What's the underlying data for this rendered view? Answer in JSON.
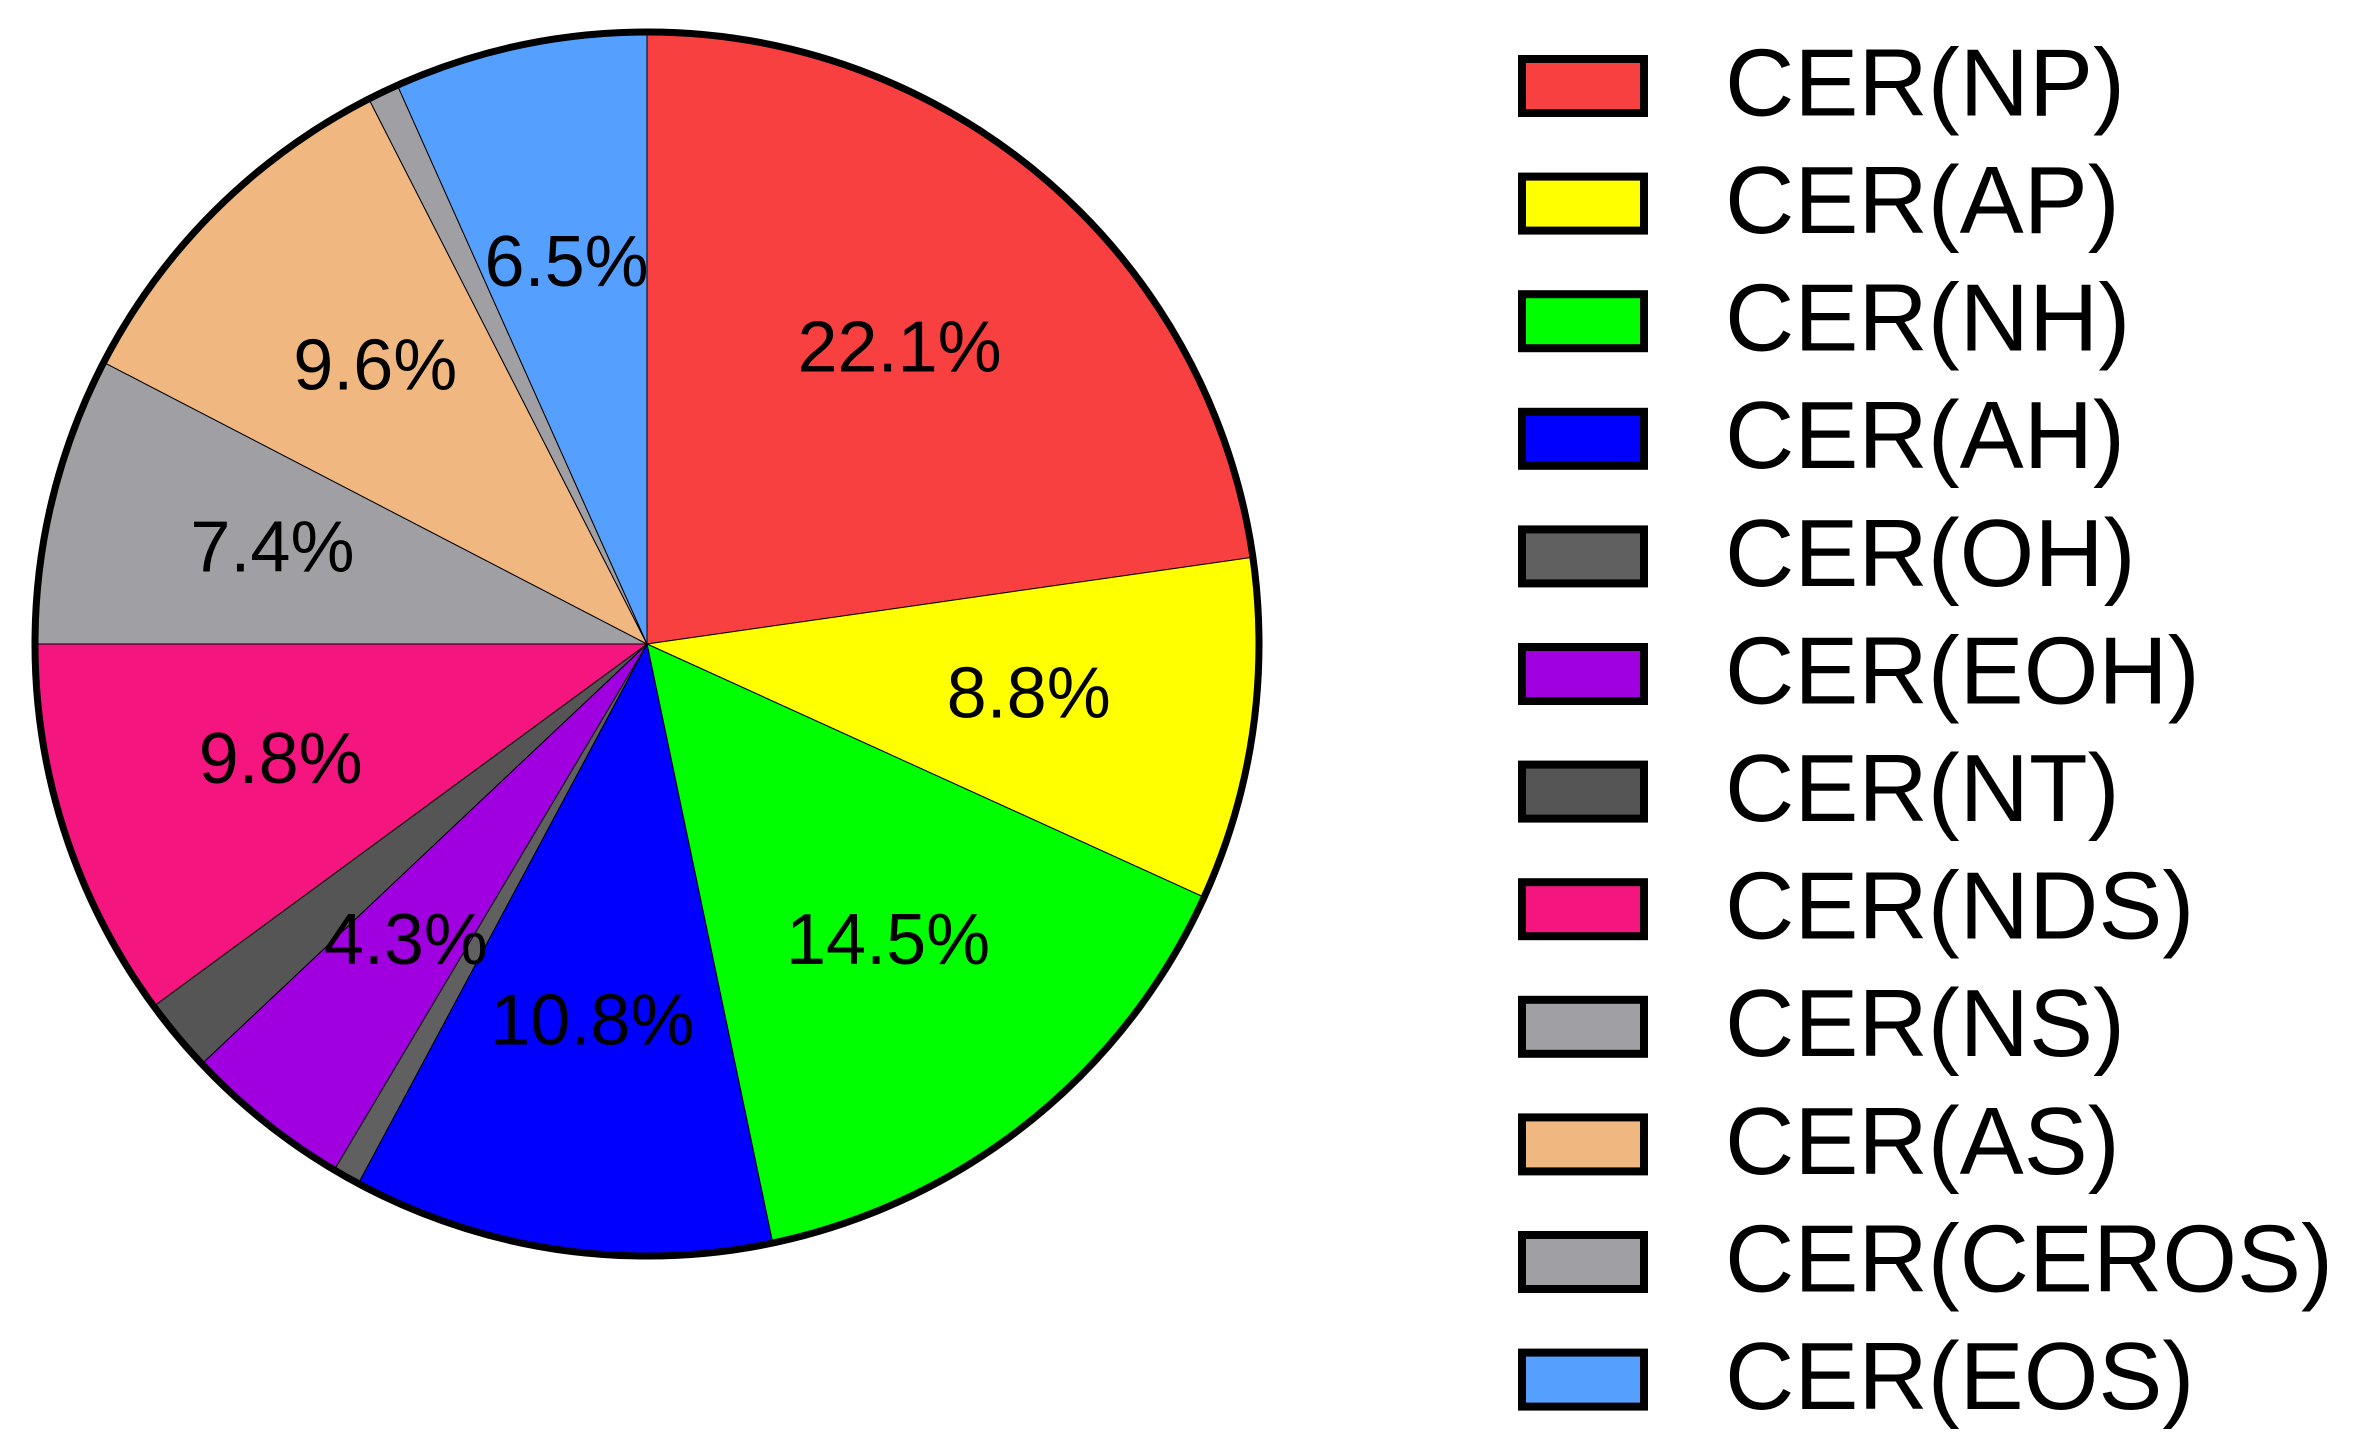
{
  "chart_data": {
    "type": "pie",
    "categories": [
      "CER(NP)",
      "CER(AP)",
      "CER(NH)",
      "CER(AH)",
      "CER(OH)",
      "CER(EOH)",
      "CER(NT)",
      "CER(NDS)",
      "CER(NS)",
      "CER(AS)",
      "CER(CEROS)",
      "CER(EOS)"
    ],
    "values": [
      22.1,
      8.8,
      14.5,
      10.8,
      0.7,
      4.3,
      1.9,
      9.8,
      7.4,
      9.6,
      0.8,
      6.5
    ],
    "value_labels": [
      "22.1%",
      "8.8%",
      "14.5%",
      "10.8%",
      null,
      "4.3%",
      null,
      "9.8%",
      "7.4%",
      "9.6%",
      null,
      "6.5%"
    ],
    "colors": [
      "#f94040",
      "#ffff00",
      "#00ff00",
      "#0000ff",
      "#606060",
      "#a000e0",
      "#555555",
      "#f5157f",
      "#a0a0a4",
      "#f0b880",
      "#a0a0a4",
      "#55a0ff"
    ],
    "legend": "right"
  }
}
